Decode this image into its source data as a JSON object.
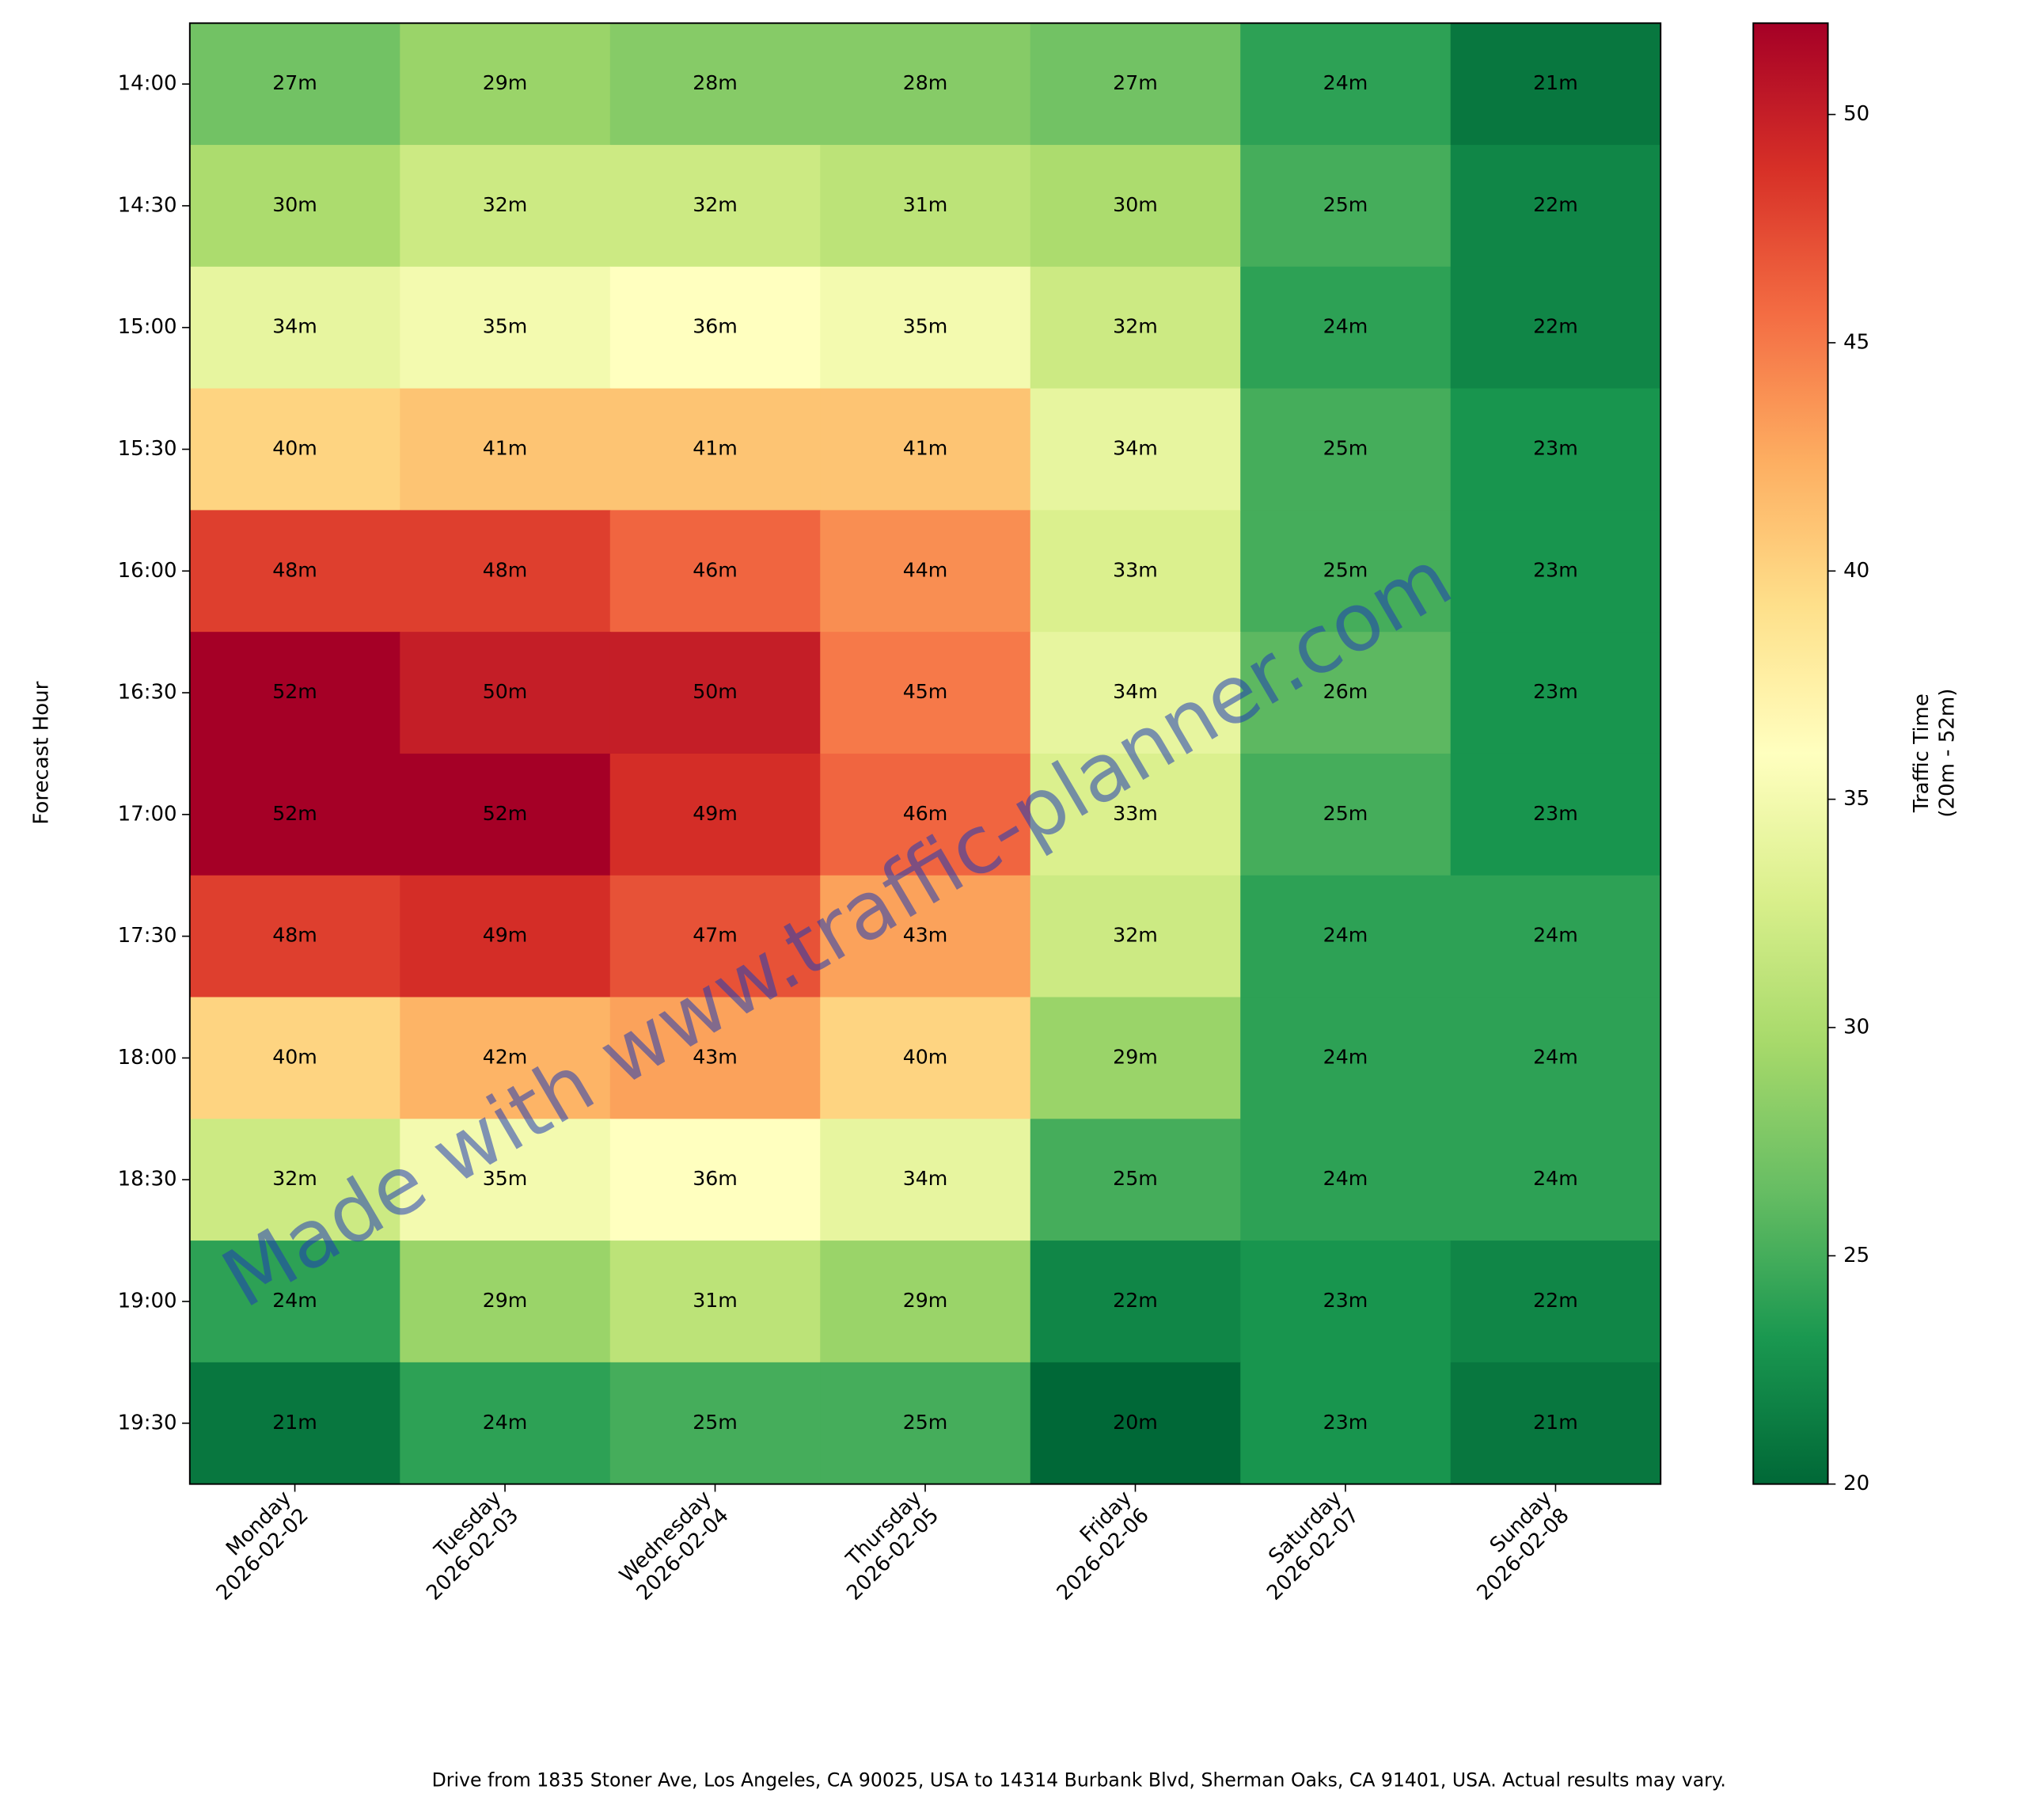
{
  "chart_data": {
    "type": "heatmap",
    "x_categories": [
      [
        "Monday",
        "2026-02-02"
      ],
      [
        "Tuesday",
        "2026-02-03"
      ],
      [
        "Wednesday",
        "2026-02-04"
      ],
      [
        "Thursday",
        "2026-02-05"
      ],
      [
        "Friday",
        "2026-02-06"
      ],
      [
        "Saturday",
        "2026-02-07"
      ],
      [
        "Sunday",
        "2026-02-08"
      ]
    ],
    "y_categories": [
      "14:00",
      "14:30",
      "15:00",
      "15:30",
      "16:00",
      "16:30",
      "17:00",
      "17:30",
      "18:00",
      "18:30",
      "19:00",
      "19:30"
    ],
    "ylabel": "Forecast Hour",
    "values": [
      [
        27,
        29,
        28,
        28,
        27,
        24,
        21
      ],
      [
        30,
        32,
        32,
        31,
        30,
        25,
        22
      ],
      [
        34,
        35,
        36,
        35,
        32,
        24,
        22
      ],
      [
        40,
        41,
        41,
        41,
        34,
        25,
        23
      ],
      [
        48,
        48,
        46,
        44,
        33,
        25,
        23
      ],
      [
        52,
        50,
        50,
        45,
        34,
        26,
        23
      ],
      [
        52,
        52,
        49,
        46,
        33,
        25,
        23
      ],
      [
        48,
        49,
        47,
        43,
        32,
        24,
        24
      ],
      [
        40,
        42,
        43,
        40,
        29,
        24,
        24
      ],
      [
        32,
        35,
        36,
        34,
        25,
        24,
        24
      ],
      [
        24,
        29,
        31,
        29,
        22,
        23,
        22
      ],
      [
        21,
        24,
        25,
        25,
        20,
        23,
        21
      ]
    ],
    "value_labels": [
      [
        "27m",
        "29m",
        "28m",
        "28m",
        "27m",
        "24m",
        "21m"
      ],
      [
        "30m",
        "32m",
        "32m",
        "31m",
        "30m",
        "25m",
        "22m"
      ],
      [
        "34m",
        "35m",
        "36m",
        "35m",
        "32m",
        "24m",
        "22m"
      ],
      [
        "40m",
        "41m",
        "41m",
        "41m",
        "34m",
        "25m",
        "23m"
      ],
      [
        "48m",
        "48m",
        "46m",
        "44m",
        "33m",
        "25m",
        "23m"
      ],
      [
        "52m",
        "50m",
        "50m",
        "45m",
        "34m",
        "26m",
        "23m"
      ],
      [
        "52m",
        "52m",
        "49m",
        "46m",
        "33m",
        "25m",
        "23m"
      ],
      [
        "48m",
        "49m",
        "47m",
        "43m",
        "32m",
        "24m",
        "24m"
      ],
      [
        "40m",
        "42m",
        "43m",
        "40m",
        "29m",
        "24m",
        "24m"
      ],
      [
        "32m",
        "35m",
        "36m",
        "34m",
        "25m",
        "24m",
        "24m"
      ],
      [
        "24m",
        "29m",
        "31m",
        "29m",
        "22m",
        "23m",
        "22m"
      ],
      [
        "21m",
        "24m",
        "25m",
        "25m",
        "20m",
        "23m",
        "21m"
      ]
    ],
    "colormap": "RdYlGn_r",
    "zlim": [
      20,
      52
    ],
    "zticks": [
      20,
      25,
      30,
      35,
      40,
      45,
      50
    ],
    "colorbar_label": [
      "Traffic Time",
      "(20m - 52m)"
    ],
    "watermark": "Made with www.traffic-planner.com",
    "footnote": "Drive from 1835 Stoner Ave, Los Angeles, CA 90025, USA to 14314 Burbank Blvd, Sherman Oaks, CA 91401, USA. Actual results may vary."
  }
}
